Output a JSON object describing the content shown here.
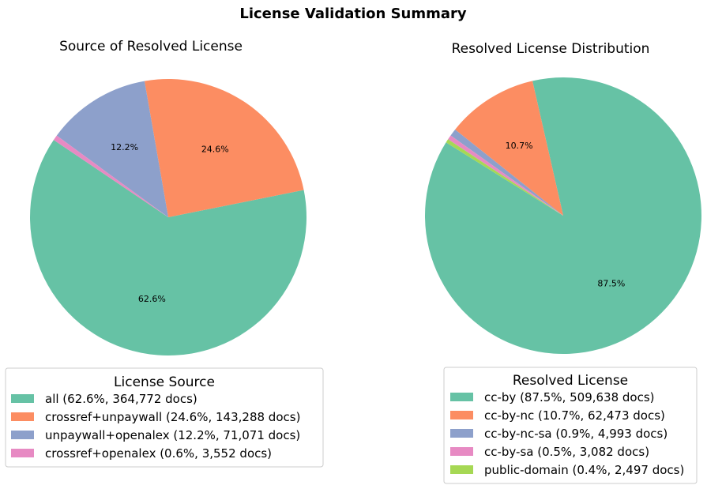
{
  "suptitle": "License Validation Summary",
  "chart_data": [
    {
      "type": "pie",
      "title": "Source of Resolved License",
      "start_angle_deg": 146,
      "direction": "counterclockwise",
      "labels": [
        "all",
        "crossref+unpaywall",
        "unpaywall+openalex",
        "crossref+openalex"
      ],
      "values": [
        364772,
        143288,
        71071,
        3552
      ],
      "percent_labels": [
        "62.6%",
        "24.6%",
        "12.2%",
        "0.6%"
      ],
      "colors": [
        "#66c2a5",
        "#fc8d62",
        "#8da0cb",
        "#e78ac3"
      ],
      "slice_labels_shown": [
        "62.6%",
        "24.6%",
        "12.2%",
        ""
      ],
      "legend": {
        "title": "License Source",
        "placement": "below",
        "entries": [
          "all (62.6%, 364,772 docs)",
          "crossref+unpaywall (24.6%, 143,288 docs)",
          "unpaywall+openalex (12.2%, 71,071 docs)",
          "crossref+openalex (0.6%, 3,552 docs)"
        ]
      }
    },
    {
      "type": "pie",
      "title": "Resolved License Distribution",
      "start_angle_deg": 148,
      "direction": "counterclockwise",
      "labels": [
        "cc-by",
        "cc-by-nc",
        "cc-by-nc-sa",
        "cc-by-sa",
        "public-domain"
      ],
      "values": [
        509638,
        62473,
        4993,
        3082,
        2497
      ],
      "percent_labels": [
        "87.5%",
        "10.7%",
        "0.9%",
        "0.5%",
        "0.4%"
      ],
      "colors": [
        "#66c2a5",
        "#fc8d62",
        "#8da0cb",
        "#e78ac3",
        "#a6d854"
      ],
      "slice_labels_shown": [
        "87.5%",
        "10.7%",
        "",
        "",
        ""
      ],
      "legend": {
        "title": "Resolved License",
        "placement": "below",
        "entries": [
          "cc-by (87.5%, 509,638 docs)",
          "cc-by-nc (10.7%, 62,473 docs)",
          "cc-by-nc-sa (0.9%, 4,993 docs)",
          "cc-by-sa (0.5%, 3,082 docs)",
          "public-domain (0.4%, 2,497 docs)"
        ]
      }
    }
  ]
}
